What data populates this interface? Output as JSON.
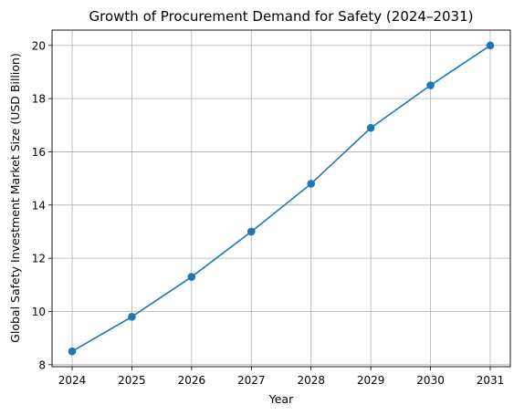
{
  "chart_data": {
    "type": "line",
    "title": "Growth of Procurement Demand for Safety (2024–2031)",
    "xlabel": "Year",
    "ylabel": "Global Safety Investment Market Size (USD Billion)",
    "x": [
      "2024",
      "2025",
      "2026",
      "2027",
      "2028",
      "2029",
      "2030",
      "2031"
    ],
    "series": [
      {
        "values": [
          8.5,
          9.8,
          11.3,
          13.0,
          14.8,
          16.9,
          18.5,
          20.0
        ]
      }
    ],
    "y_ticks": [
      8,
      10,
      12,
      14,
      16,
      18,
      20
    ],
    "ylim": [
      7.925,
      20.575
    ],
    "grid": true,
    "marker": "circle",
    "colors": {
      "line": "#1f77b4",
      "grid": "#b0b0b0"
    }
  }
}
